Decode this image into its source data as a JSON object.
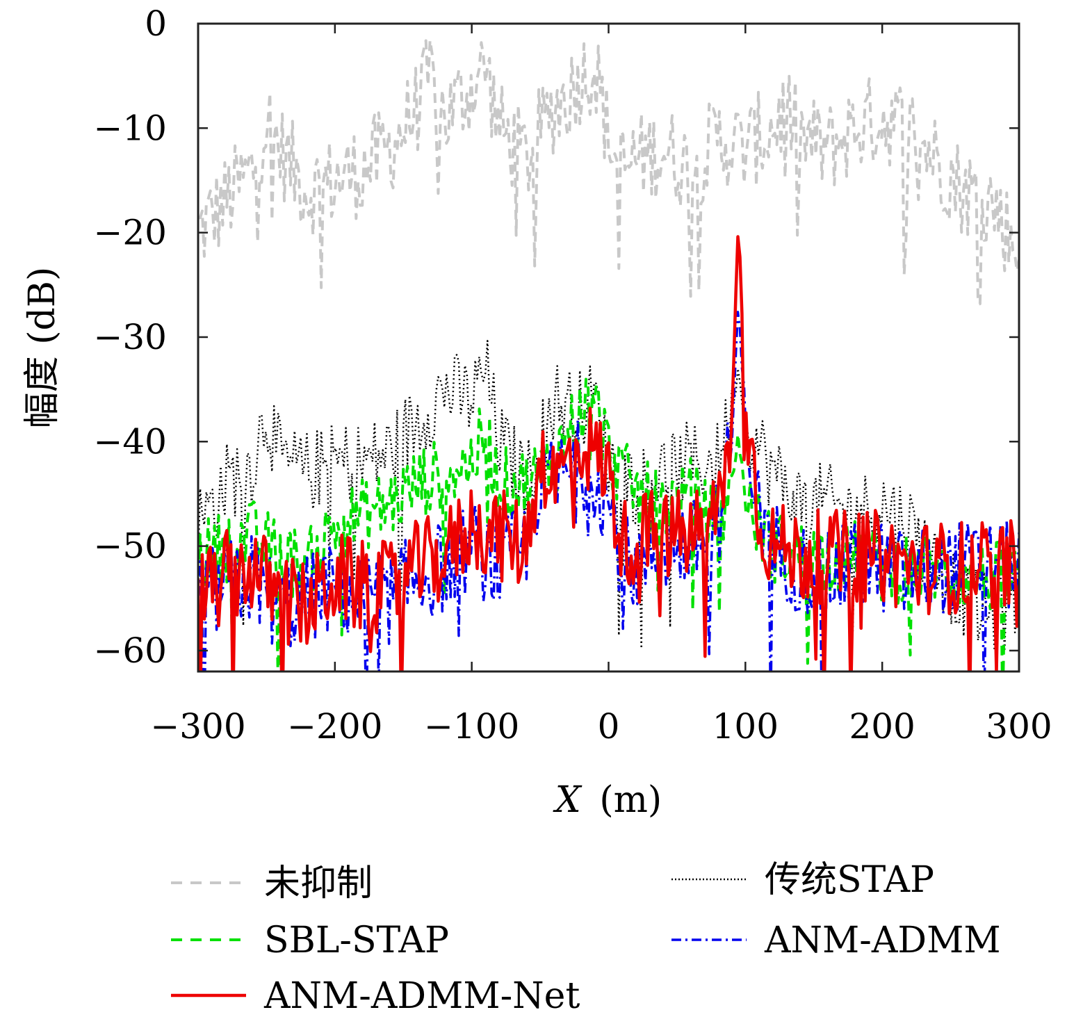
{
  "chart_data": {
    "type": "line",
    "title": "",
    "xlabel": "X (m)",
    "xlabel_var": "X",
    "xlabel_unit": "(m)",
    "ylabel": "幅度 (dB)",
    "xlim": [
      -300,
      300
    ],
    "ylim": [
      -62,
      0
    ],
    "xticks": [
      -300,
      -200,
      -100,
      0,
      100,
      200,
      300
    ],
    "xtick_labels": [
      "−300",
      "−200",
      "−100",
      "0",
      "100",
      "200",
      "300"
    ],
    "yticks": [
      0,
      -10,
      -20,
      -30,
      -40,
      -50,
      -60
    ],
    "ytick_labels": [
      "0",
      "−10",
      "−20",
      "−30",
      "−40",
      "−50",
      "−60"
    ],
    "grid": false,
    "legend_position": "bottom",
    "series": [
      {
        "name": "未抑制",
        "color": "#c8c8c8",
        "style": "dashed",
        "x": [
          -300,
          -280,
          -260,
          -250,
          -240,
          -220,
          -200,
          -180,
          -160,
          -140,
          -130,
          -120,
          -100,
          -90,
          -80,
          -60,
          -40,
          -30,
          -20,
          -10,
          0,
          10,
          20,
          40,
          60,
          80,
          100,
          120,
          130,
          140,
          160,
          180,
          200,
          220,
          240,
          260,
          280,
          300
        ],
        "y": [
          -20,
          -17,
          -14,
          -9,
          -12,
          -16,
          -15,
          -14,
          -12,
          -8,
          -5,
          -9,
          -6,
          -4,
          -10,
          -13,
          -8,
          -7,
          -5,
          -4,
          -11,
          -14,
          -13,
          -12,
          -14,
          -11,
          -12,
          -10,
          -8,
          -11,
          -12,
          -10,
          -9,
          -10,
          -13,
          -16,
          -17,
          -22
        ]
      },
      {
        "name": "传统STAP",
        "color": "#000000",
        "style": "dotted",
        "x": [
          -300,
          -280,
          -260,
          -250,
          -240,
          -220,
          -200,
          -180,
          -160,
          -140,
          -120,
          -100,
          -90,
          -80,
          -60,
          -40,
          -20,
          -10,
          0,
          20,
          40,
          60,
          80,
          90,
          95,
          100,
          120,
          140,
          160,
          180,
          200,
          220,
          240,
          260,
          280,
          300
        ],
        "y": [
          -48,
          -44,
          -42,
          -37,
          -42,
          -43,
          -42,
          -42,
          -41,
          -38,
          -35,
          -36,
          -33,
          -40,
          -44,
          -36,
          -37,
          -36,
          -42,
          -44,
          -43,
          -42,
          -42,
          -36,
          -33,
          -38,
          -43,
          -46,
          -46,
          -47,
          -46,
          -48,
          -52,
          -55,
          -57,
          -55
        ]
      },
      {
        "name": "SBL-STAP",
        "color": "#00e000",
        "style": "dashed",
        "x": [
          -300,
          -280,
          -260,
          -240,
          -220,
          -200,
          -180,
          -160,
          -140,
          -120,
          -100,
          -90,
          -80,
          -60,
          -40,
          -30,
          -20,
          -10,
          0,
          20,
          40,
          60,
          80,
          90,
          95,
          100,
          120,
          140,
          160,
          180,
          200,
          220,
          240,
          260,
          280,
          300
        ],
        "y": [
          -51,
          -50,
          -49,
          -51,
          -52,
          -48,
          -47,
          -46,
          -44,
          -43,
          -42,
          -39,
          -44,
          -44,
          -42,
          -39,
          -37,
          -36,
          -41,
          -45,
          -46,
          -45,
          -48,
          -44,
          -39,
          -46,
          -50,
          -51,
          -51,
          -51,
          -52,
          -52,
          -52,
          -53,
          -53,
          -53
        ]
      },
      {
        "name": "ANM-ADMM",
        "color": "#0000ee",
        "style": "dashdot",
        "x": [
          -300,
          -280,
          -260,
          -240,
          -220,
          -200,
          -180,
          -160,
          -140,
          -120,
          -100,
          -80,
          -60,
          -50,
          -40,
          -20,
          -10,
          0,
          10,
          20,
          40,
          60,
          80,
          90,
          95,
          100,
          110,
          120,
          140,
          160,
          180,
          200,
          220,
          240,
          260,
          280,
          300
        ],
        "y": [
          -55,
          -54,
          -53,
          -56,
          -55,
          -54,
          -55,
          -55,
          -53,
          -52,
          -50,
          -52,
          -50,
          -43,
          -44,
          -42,
          -43,
          -46,
          -51,
          -52,
          -50,
          -50,
          -48,
          -40,
          -27,
          -38,
          -47,
          -50,
          -52,
          -53,
          -52,
          -52,
          -53,
          -52,
          -52,
          -52,
          -52
        ]
      },
      {
        "name": "ANM-ADMM-Net",
        "color": "#ee0000",
        "style": "solid",
        "x": [
          -300,
          -280,
          -260,
          -240,
          -220,
          -200,
          -180,
          -160,
          -140,
          -120,
          -100,
          -80,
          -60,
          -50,
          -40,
          -20,
          -10,
          0,
          10,
          20,
          40,
          60,
          80,
          90,
          95,
          100,
          110,
          120,
          140,
          160,
          180,
          200,
          220,
          240,
          260,
          280,
          300
        ],
        "y": [
          -55,
          -53,
          -52,
          -55,
          -56,
          -53,
          -54,
          -54,
          -52,
          -51,
          -48,
          -49,
          -50,
          -41,
          -44,
          -40,
          -41,
          -43,
          -50,
          -49,
          -49,
          -49,
          -47,
          -38,
          -19,
          -36,
          -47,
          -50,
          -51,
          -51,
          -51,
          -51,
          -52,
          -52,
          -52,
          -52,
          -52
        ]
      }
    ]
  }
}
